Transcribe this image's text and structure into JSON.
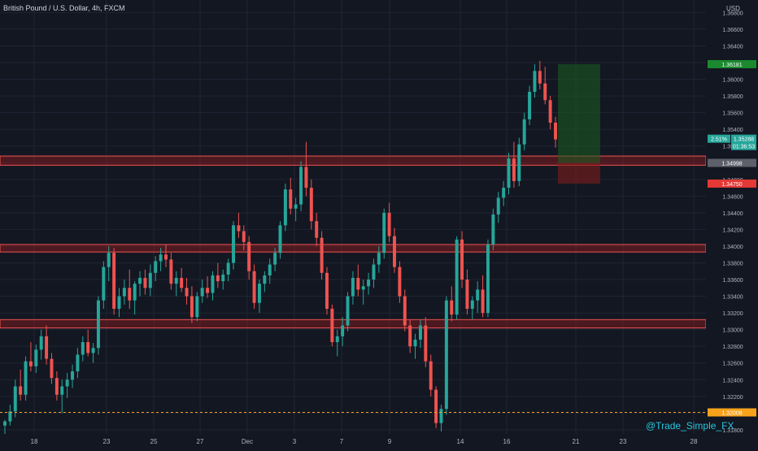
{
  "header": {
    "symbol_title": "British Pound / U.S. Dollar, 4h, FXCM"
  },
  "price_axis": {
    "currency": "USD",
    "ticks": [
      "1.36800",
      "1.36600",
      "1.36400",
      "1.36200",
      "1.36000",
      "1.35800",
      "1.35600",
      "1.35400",
      "1.35200",
      "1.35000",
      "1.34800",
      "1.34600",
      "1.34400",
      "1.34200",
      "1.34000",
      "1.33800",
      "1.33600",
      "1.33400",
      "1.33200",
      "1.33000",
      "1.32800",
      "1.32600",
      "1.32400",
      "1.32200",
      "1.32000",
      "1.31800"
    ],
    "markers": [
      {
        "label": "1.36181",
        "price": 1.36181,
        "color": "#1b8a2f"
      },
      {
        "label": "2.51%",
        "price": 1.35288,
        "color": "#26a69a"
      },
      {
        "label": "1.35288",
        "price": 1.35288,
        "color": "#26a69a"
      },
      {
        "label": "01:36:53",
        "price": 1.35288,
        "color": "#26a69a"
      },
      {
        "label": "1.34998",
        "price": 1.34998,
        "color": "#5d606b"
      },
      {
        "label": "1.34750",
        "price": 1.3475,
        "color": "#e53935"
      },
      {
        "label": "1.32008",
        "price": 1.32008,
        "color": "#f7a21b"
      }
    ]
  },
  "time_axis": {
    "ticks": [
      "18",
      "23",
      "25",
      "27",
      "Dec",
      "3",
      "7",
      "9",
      "14",
      "16",
      "21",
      "23",
      "28"
    ]
  },
  "watermark": "@Trade_Simple_FX",
  "colors": {
    "background": "#131722",
    "up": "#26a69a",
    "down": "#ef5350",
    "zone": "#b71c1c",
    "target": "#1b5e20",
    "stop": "#7f1d1d",
    "dashed_level": "#f7a21b"
  },
  "chart_data": {
    "type": "candlestick",
    "title": "British Pound / U.S. Dollar, 4h, FXCM",
    "ylim": [
      1.3175,
      1.3695
    ],
    "support_resistance_zones": [
      [
        1.3497,
        1.3508
      ],
      [
        1.3393,
        1.3402
      ],
      [
        1.3302,
        1.3312
      ]
    ],
    "dashed_level": 1.32008,
    "position": {
      "entry": 1.34998,
      "target": 1.36181,
      "stop": 1.3475
    },
    "candles": [
      [
        1.3185,
        1.3192,
        1.3172,
        1.319
      ],
      [
        1.319,
        1.321,
        1.3185,
        1.3202
      ],
      [
        1.3202,
        1.324,
        1.3195,
        1.3232
      ],
      [
        1.3232,
        1.3252,
        1.3215,
        1.3222
      ],
      [
        1.3222,
        1.3268,
        1.3215,
        1.3262
      ],
      [
        1.3262,
        1.3285,
        1.325,
        1.3256
      ],
      [
        1.3256,
        1.3282,
        1.3248,
        1.3276
      ],
      [
        1.3276,
        1.33,
        1.3264,
        1.3292
      ],
      [
        1.3292,
        1.3305,
        1.3258,
        1.3265
      ],
      [
        1.3265,
        1.3272,
        1.3235,
        1.3242
      ],
      [
        1.3242,
        1.325,
        1.3215,
        1.3222
      ],
      [
        1.3222,
        1.324,
        1.32,
        1.3232
      ],
      [
        1.3232,
        1.3248,
        1.3218,
        1.324
      ],
      [
        1.324,
        1.3258,
        1.323,
        1.325
      ],
      [
        1.325,
        1.3278,
        1.3242,
        1.327
      ],
      [
        1.327,
        1.3292,
        1.3262,
        1.3285
      ],
      [
        1.3285,
        1.33,
        1.3268,
        1.3272
      ],
      [
        1.3272,
        1.3284,
        1.326,
        1.3278
      ],
      [
        1.3278,
        1.334,
        1.327,
        1.3335
      ],
      [
        1.3335,
        1.3382,
        1.3325,
        1.3375
      ],
      [
        1.3375,
        1.34,
        1.3358,
        1.3392
      ],
      [
        1.3392,
        1.3398,
        1.3318,
        1.3325
      ],
      [
        1.3325,
        1.335,
        1.3315,
        1.334
      ],
      [
        1.334,
        1.336,
        1.333,
        1.335
      ],
      [
        1.335,
        1.3372,
        1.3325,
        1.3335
      ],
      [
        1.3335,
        1.3358,
        1.3318,
        1.3355
      ],
      [
        1.3355,
        1.337,
        1.334,
        1.3362
      ],
      [
        1.3362,
        1.3372,
        1.3342,
        1.335
      ],
      [
        1.335,
        1.3378,
        1.334,
        1.3368
      ],
      [
        1.3368,
        1.3388,
        1.3358,
        1.3382
      ],
      [
        1.3382,
        1.3398,
        1.337,
        1.339
      ],
      [
        1.339,
        1.3402,
        1.3375,
        1.3384
      ],
      [
        1.3384,
        1.3392,
        1.3348,
        1.3355
      ],
      [
        1.3355,
        1.337,
        1.334,
        1.3362
      ],
      [
        1.3362,
        1.3374,
        1.3345,
        1.335
      ],
      [
        1.335,
        1.3362,
        1.333,
        1.334
      ],
      [
        1.334,
        1.3352,
        1.3308,
        1.3315
      ],
      [
        1.3315,
        1.3345,
        1.331,
        1.334
      ],
      [
        1.334,
        1.336,
        1.3332,
        1.335
      ],
      [
        1.335,
        1.3364,
        1.3338,
        1.3344
      ],
      [
        1.3344,
        1.337,
        1.3335,
        1.3365
      ],
      [
        1.3365,
        1.338,
        1.335,
        1.3358
      ],
      [
        1.3358,
        1.3372,
        1.3348,
        1.3366
      ],
      [
        1.3366,
        1.3385,
        1.3358,
        1.338
      ],
      [
        1.338,
        1.343,
        1.3372,
        1.3425
      ],
      [
        1.3425,
        1.344,
        1.341,
        1.3418
      ],
      [
        1.3418,
        1.3425,
        1.3395,
        1.3405
      ],
      [
        1.3405,
        1.3412,
        1.336,
        1.337
      ],
      [
        1.337,
        1.3378,
        1.3325,
        1.3332
      ],
      [
        1.3332,
        1.336,
        1.332,
        1.3355
      ],
      [
        1.3355,
        1.337,
        1.3345,
        1.3365
      ],
      [
        1.3365,
        1.3385,
        1.3355,
        1.3378
      ],
      [
        1.3378,
        1.3398,
        1.337,
        1.3392
      ],
      [
        1.3392,
        1.343,
        1.3385,
        1.3425
      ],
      [
        1.3425,
        1.3475,
        1.3418,
        1.3468
      ],
      [
        1.3468,
        1.3482,
        1.3438,
        1.3445
      ],
      [
        1.3445,
        1.3458,
        1.343,
        1.345
      ],
      [
        1.345,
        1.3502,
        1.3442,
        1.3495
      ],
      [
        1.3495,
        1.3525,
        1.346,
        1.347
      ],
      [
        1.347,
        1.348,
        1.342,
        1.343
      ],
      [
        1.343,
        1.344,
        1.34,
        1.341
      ],
      [
        1.341,
        1.3418,
        1.336,
        1.3368
      ],
      [
        1.3368,
        1.3375,
        1.3318,
        1.3325
      ],
      [
        1.3325,
        1.333,
        1.328,
        1.3285
      ],
      [
        1.3285,
        1.33,
        1.3268,
        1.3292
      ],
      [
        1.3292,
        1.3315,
        1.328,
        1.3305
      ],
      [
        1.3305,
        1.3345,
        1.3298,
        1.334
      ],
      [
        1.334,
        1.337,
        1.333,
        1.3362
      ],
      [
        1.3362,
        1.3378,
        1.334,
        1.3348
      ],
      [
        1.3348,
        1.336,
        1.333,
        1.3352
      ],
      [
        1.3352,
        1.3368,
        1.3342,
        1.336
      ],
      [
        1.336,
        1.3385,
        1.335,
        1.3378
      ],
      [
        1.3378,
        1.34,
        1.3368,
        1.3392
      ],
      [
        1.3392,
        1.3445,
        1.3385,
        1.344
      ],
      [
        1.344,
        1.3452,
        1.3405,
        1.3412
      ],
      [
        1.3412,
        1.3422,
        1.3368,
        1.3375
      ],
      [
        1.3375,
        1.3382,
        1.3332,
        1.334
      ],
      [
        1.334,
        1.3348,
        1.3298,
        1.3305
      ],
      [
        1.3305,
        1.3312,
        1.3272,
        1.328
      ],
      [
        1.328,
        1.3295,
        1.3265,
        1.3288
      ],
      [
        1.3288,
        1.3312,
        1.3278,
        1.3305
      ],
      [
        1.3305,
        1.3315,
        1.3255,
        1.3262
      ],
      [
        1.3262,
        1.327,
        1.322,
        1.3228
      ],
      [
        1.3228,
        1.3232,
        1.3182,
        1.3188
      ],
      [
        1.3188,
        1.321,
        1.3178,
        1.3205
      ],
      [
        1.3205,
        1.334,
        1.3198,
        1.3335
      ],
      [
        1.3335,
        1.3352,
        1.331,
        1.3318
      ],
      [
        1.3318,
        1.3412,
        1.3312,
        1.3408
      ],
      [
        1.3408,
        1.3418,
        1.335,
        1.336
      ],
      [
        1.336,
        1.3372,
        1.3318,
        1.3325
      ],
      [
        1.3325,
        1.334,
        1.3312,
        1.3335
      ],
      [
        1.3335,
        1.3358,
        1.332,
        1.3348
      ],
      [
        1.3348,
        1.3365,
        1.3315,
        1.332
      ],
      [
        1.332,
        1.3408,
        1.3315,
        1.3402
      ],
      [
        1.3402,
        1.3445,
        1.3395,
        1.3438
      ],
      [
        1.3438,
        1.3465,
        1.3428,
        1.3458
      ],
      [
        1.3458,
        1.3478,
        1.3448,
        1.347
      ],
      [
        1.347,
        1.3512,
        1.3462,
        1.3505
      ],
      [
        1.3505,
        1.3525,
        1.347,
        1.3478
      ],
      [
        1.3478,
        1.353,
        1.3472,
        1.3522
      ],
      [
        1.3522,
        1.356,
        1.3515,
        1.3552
      ],
      [
        1.3552,
        1.3592,
        1.3545,
        1.3585
      ],
      [
        1.3585,
        1.3618,
        1.3578,
        1.361
      ],
      [
        1.361,
        1.3622,
        1.3588,
        1.3595
      ],
      [
        1.3595,
        1.3615,
        1.357,
        1.3575
      ],
      [
        1.3575,
        1.358,
        1.354,
        1.3548
      ],
      [
        1.3548,
        1.3555,
        1.3518,
        1.3528
      ]
    ]
  }
}
